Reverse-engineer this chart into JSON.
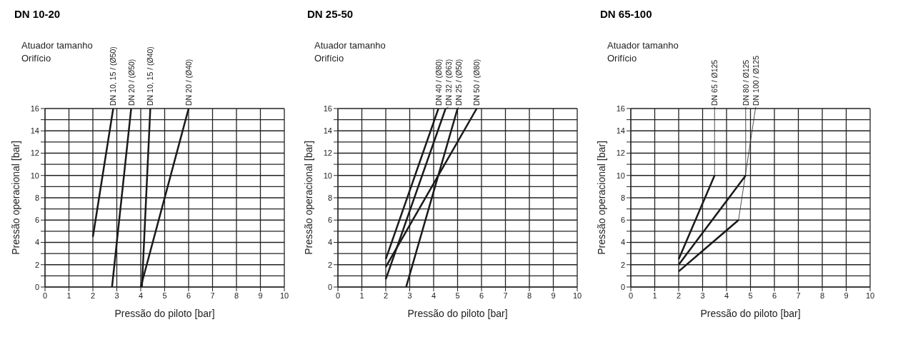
{
  "chart_data": [
    {
      "type": "line",
      "title": "DN 10-20",
      "annotations": [
        "Atuador tamanho",
        "Orifício"
      ],
      "xlabel": "Pressão do piloto [bar]",
      "ylabel": "Pressão operacional [bar]",
      "xlim": [
        0,
        10
      ],
      "ylim": [
        0,
        16
      ],
      "xticks": [
        0,
        1,
        2,
        3,
        4,
        5,
        6,
        7,
        8,
        9,
        10
      ],
      "yticks": [
        0,
        {
          "value": 1,
          "label": null
        },
        2,
        {
          "value": 3,
          "label": null
        },
        4,
        {
          "value": 5,
          "label": null
        },
        6,
        {
          "value": 7,
          "label": null
        },
        8,
        {
          "value": 9,
          "label": null
        },
        10,
        {
          "value": 11,
          "label": null
        },
        12,
        {
          "value": 13,
          "label": null
        },
        14,
        {
          "value": 15,
          "label": null
        },
        16
      ],
      "grid": true,
      "marker": "none",
      "line_style": "solid",
      "legend": false,
      "series": [
        {
          "name": "DN 10, 15 / (Ø50)",
          "color": "#1a1a1a",
          "x": [
            2,
            2.85
          ],
          "values": [
            4.5,
            16
          ]
        },
        {
          "name": "DN 20 / (Ø50)",
          "color": "#1a1a1a",
          "x": [
            2.8,
            3.6
          ],
          "values": [
            0,
            16
          ]
        },
        {
          "name": "DN 10, 15 / (Ø40)",
          "color": "#1a1a1a",
          "x": [
            4.05,
            4.4
          ],
          "values": [
            0,
            16
          ]
        },
        {
          "name": "DN 20 / (Ø40)",
          "color": "#1a1a1a",
          "x": [
            4,
            6
          ],
          "values": [
            0,
            16
          ]
        }
      ]
    },
    {
      "type": "line",
      "title": "DN 25-50",
      "annotations": [
        "Atuador tamanho",
        "Orifício"
      ],
      "xlabel": "Pressão do piloto [bar]",
      "ylabel": "Pressão operacional [bar]",
      "xlim": [
        0,
        10
      ],
      "ylim": [
        0,
        16
      ],
      "xticks": [
        0,
        1,
        2,
        3,
        4,
        5,
        6,
        7,
        8,
        9,
        10
      ],
      "yticks": [
        0,
        {
          "value": 1,
          "label": null
        },
        2,
        {
          "value": 3,
          "label": null
        },
        4,
        {
          "value": 5,
          "label": null
        },
        6,
        {
          "value": 7,
          "label": null
        },
        8,
        {
          "value": 9,
          "label": null
        },
        10,
        {
          "value": 11,
          "label": null
        },
        12,
        {
          "value": 13,
          "label": null
        },
        14,
        {
          "value": 15,
          "label": null
        },
        16
      ],
      "grid": true,
      "line_style": "solid",
      "legend": false,
      "series": [
        {
          "name": "DN 40 / (Ø80)",
          "color": "#1a1a1a",
          "x": [
            2,
            4.2
          ],
          "values": [
            2.5,
            16
          ]
        },
        {
          "name": "DN 32 / (Ø63)",
          "color": "#1a1a1a",
          "x": [
            2,
            4.5
          ],
          "values": [
            0.7,
            16
          ]
        },
        {
          "name": "DN 25 / (Ø50)",
          "color": "#1a1a1a",
          "x": [
            2.85,
            5
          ],
          "values": [
            0,
            16
          ]
        },
        {
          "name": "DN 50 / (Ø80)",
          "color": "#1a1a1a",
          "x": [
            2,
            5.8
          ],
          "values": [
            1.8,
            16
          ]
        }
      ]
    },
    {
      "type": "line",
      "title": "DN 65-100",
      "annotations": [
        "Atuador tamanho",
        "Orifício"
      ],
      "xlabel": "Pressão do piloto [bar]",
      "ylabel": "Pressão operacional [bar]",
      "xlim": [
        0,
        10
      ],
      "ylim": [
        0,
        16
      ],
      "xticks": [
        0,
        1,
        2,
        3,
        4,
        5,
        6,
        7,
        8,
        9,
        10
      ],
      "yticks": [
        0,
        {
          "value": 1,
          "label": null
        },
        2,
        {
          "value": 3,
          "label": null
        },
        4,
        {
          "value": 5,
          "label": null
        },
        6,
        {
          "value": 7,
          "label": null
        },
        8,
        {
          "value": 9,
          "label": null
        },
        10,
        {
          "value": 11,
          "label": null
        },
        12,
        {
          "value": 13,
          "label": null
        },
        14,
        {
          "value": 15,
          "label": null
        },
        16
      ],
      "grid": true,
      "marker": "none",
      "line_style": "solid",
      "legend": false,
      "series": [
        {
          "name": "DN 65 / Ø125",
          "color": "#1a1a1a",
          "x": [
            2,
            3.5
          ],
          "values": [
            2.5,
            10
          ]
        },
        {
          "name": "DN 80 / Ø125",
          "color": "#1a1a1a",
          "x": [
            2,
            4.8
          ],
          "values": [
            2,
            10
          ]
        },
        {
          "name": "DN 100 / Ø125",
          "color": "#1a1a1a",
          "x": [
            2,
            4.5
          ],
          "values": [
            1.4,
            6
          ]
        }
      ]
    }
  ]
}
